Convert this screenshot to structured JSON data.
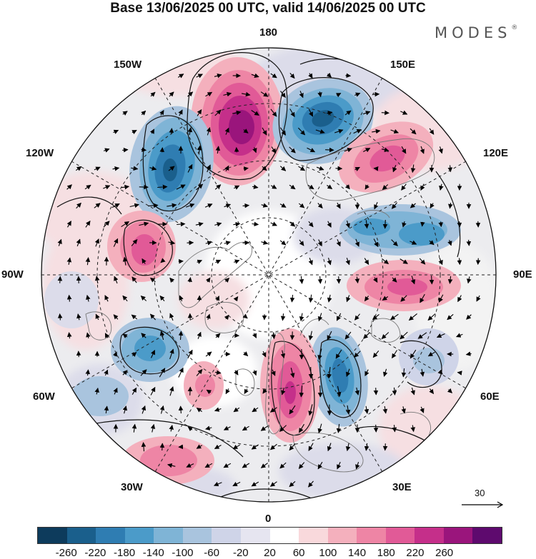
{
  "title": "Base 13/06/2025 00 UTC, valid 14/06/2025 00 UTC",
  "brand": "MODES",
  "brand_mark": "®",
  "longitude_labels": {
    "top": "180",
    "top_left": "150W",
    "top_right": "150E",
    "upper_left": "120W",
    "upper_right": "120E",
    "left": "90W",
    "right": "90E",
    "lower_left": "60W",
    "lower_right": "60E",
    "bottom_left": "30W",
    "bottom_right": "30E",
    "bottom": "0"
  },
  "reference_vector": "30",
  "colorbar": {
    "ticks": [
      "-260",
      "-220",
      "-180",
      "-140",
      "-100",
      "-60",
      "-20",
      "20",
      "60",
      "100",
      "140",
      "180",
      "220",
      "260"
    ],
    "colors": [
      "#0d3b5c",
      "#1a5f8c",
      "#2f7db2",
      "#4b9bc9",
      "#7fb4d6",
      "#a9c4de",
      "#cfd4e8",
      "#e6e5f0",
      "#ffffff",
      "#f9d9dc",
      "#f4b0bd",
      "#ee85a5",
      "#e15a97",
      "#c52f8a",
      "#9a157c",
      "#5e0a6e"
    ]
  },
  "anomaly_centers": [
    {
      "id": "pos-180",
      "value": 260
    },
    {
      "id": "neg-150e",
      "value": -220
    },
    {
      "id": "neg-130w",
      "value": -220
    },
    {
      "id": "pos-130e",
      "value": 160
    },
    {
      "id": "neg-110e",
      "value": -140
    },
    {
      "id": "pos-105w",
      "value": 180
    },
    {
      "id": "pos-85e",
      "value": 140
    },
    {
      "id": "neg-60w",
      "value": -140
    },
    {
      "id": "neg-20e",
      "value": -180
    },
    {
      "id": "pos-0",
      "value": 200
    },
    {
      "id": "pos-45w",
      "value": 100
    },
    {
      "id": "pos-30w",
      "value": 140
    },
    {
      "id": "neg-65e",
      "value": -80
    }
  ]
}
